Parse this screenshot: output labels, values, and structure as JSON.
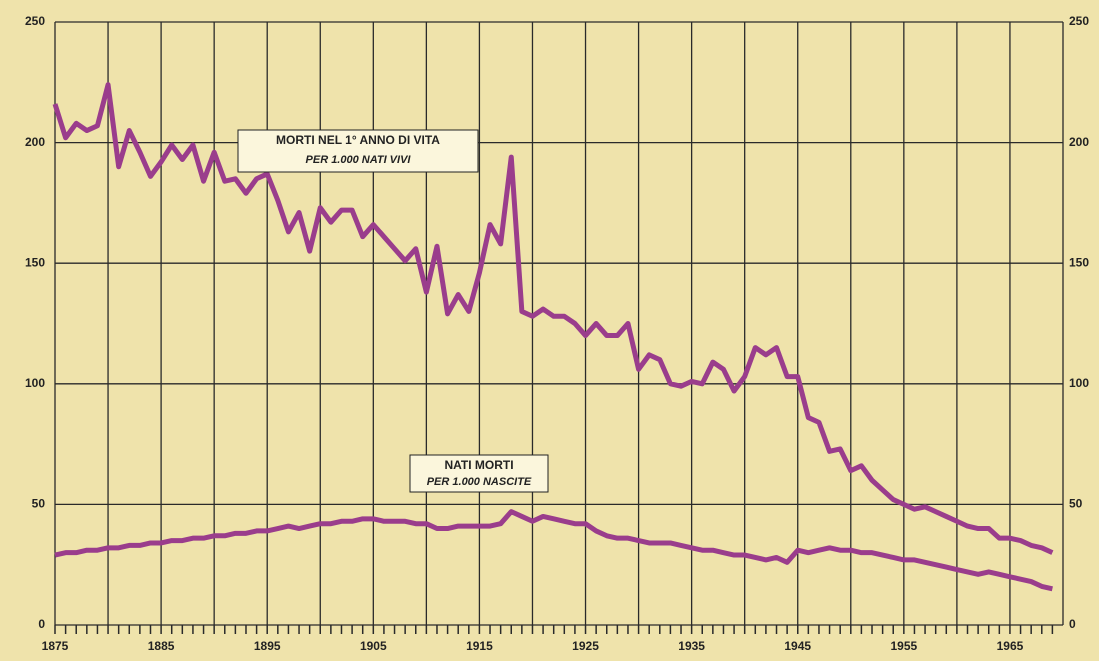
{
  "chart_data": {
    "type": "line",
    "x": [
      1875,
      1876,
      1877,
      1878,
      1879,
      1880,
      1881,
      1882,
      1883,
      1884,
      1885,
      1886,
      1887,
      1888,
      1889,
      1890,
      1891,
      1892,
      1893,
      1894,
      1895,
      1896,
      1897,
      1898,
      1899,
      1900,
      1901,
      1902,
      1903,
      1904,
      1905,
      1906,
      1907,
      1908,
      1909,
      1910,
      1911,
      1912,
      1913,
      1914,
      1915,
      1916,
      1917,
      1918,
      1919,
      1920,
      1921,
      1922,
      1923,
      1924,
      1925,
      1926,
      1927,
      1928,
      1929,
      1930,
      1931,
      1932,
      1933,
      1934,
      1935,
      1936,
      1937,
      1938,
      1939,
      1940,
      1941,
      1942,
      1943,
      1944,
      1945,
      1946,
      1947,
      1948,
      1949,
      1950,
      1951,
      1952,
      1953,
      1954,
      1955,
      1956,
      1957,
      1958,
      1959,
      1960,
      1961,
      1962,
      1963,
      1964,
      1965,
      1966,
      1967,
      1968,
      1969
    ],
    "series": [
      {
        "name": "MORTI NEL 1° ANNO DI VITA",
        "note": "PER 1.000 NATI VIVI",
        "color": "#9a3d8c",
        "values": [
          216,
          202,
          208,
          205,
          207,
          224,
          190,
          205,
          196,
          186,
          192,
          199,
          193,
          199,
          184,
          196,
          184,
          185,
          179,
          185,
          187,
          176,
          163,
          171,
          155,
          173,
          167,
          172,
          172,
          161,
          166,
          161,
          156,
          151,
          156,
          138,
          157,
          129,
          137,
          130,
          146,
          166,
          158,
          194,
          130,
          128,
          131,
          128,
          128,
          125,
          120,
          125,
          120,
          120,
          125,
          106,
          112,
          110,
          100,
          99,
          101,
          100,
          109,
          106,
          97,
          103,
          115,
          112,
          115,
          103,
          103,
          86,
          84,
          72,
          73,
          64,
          66,
          60,
          56,
          52,
          50,
          48,
          49,
          47,
          45,
          43,
          41,
          40,
          40,
          36,
          36,
          35,
          33,
          32,
          30
        ]
      },
      {
        "name": "NATI MORTI",
        "note": "PER 1.000 NASCITE",
        "color": "#9a3d8c",
        "values": [
          29,
          30,
          30,
          31,
          31,
          32,
          32,
          33,
          33,
          34,
          34,
          35,
          35,
          36,
          36,
          37,
          37,
          38,
          38,
          39,
          39,
          40,
          41,
          40,
          41,
          42,
          42,
          43,
          43,
          44,
          44,
          43,
          43,
          43,
          42,
          42,
          40,
          40,
          41,
          41,
          41,
          41,
          42,
          47,
          45,
          43,
          45,
          44,
          43,
          42,
          42,
          39,
          37,
          36,
          36,
          35,
          34,
          34,
          34,
          33,
          32,
          31,
          31,
          30,
          29,
          29,
          28,
          27,
          28,
          26,
          31,
          30,
          31,
          32,
          31,
          31,
          30,
          30,
          29,
          28,
          27,
          27,
          26,
          25,
          24,
          23,
          22,
          21,
          22,
          21,
          20,
          19,
          18,
          16,
          15
        ]
      }
    ],
    "xlim": [
      1875,
      1970
    ],
    "xticks": [
      1875,
      1885,
      1895,
      1905,
      1915,
      1925,
      1935,
      1945,
      1955,
      1965
    ],
    "minor_xticks": [
      1880,
      1890,
      1900,
      1910,
      1920,
      1930,
      1940,
      1950,
      1960,
      1970
    ],
    "ylim": [
      0,
      250
    ],
    "yticks": [
      0,
      50,
      100,
      150,
      200,
      250
    ],
    "y2lim": [
      0,
      250
    ],
    "y2ticks": [
      0,
      50,
      100,
      150,
      200,
      250
    ],
    "grid": true
  }
}
